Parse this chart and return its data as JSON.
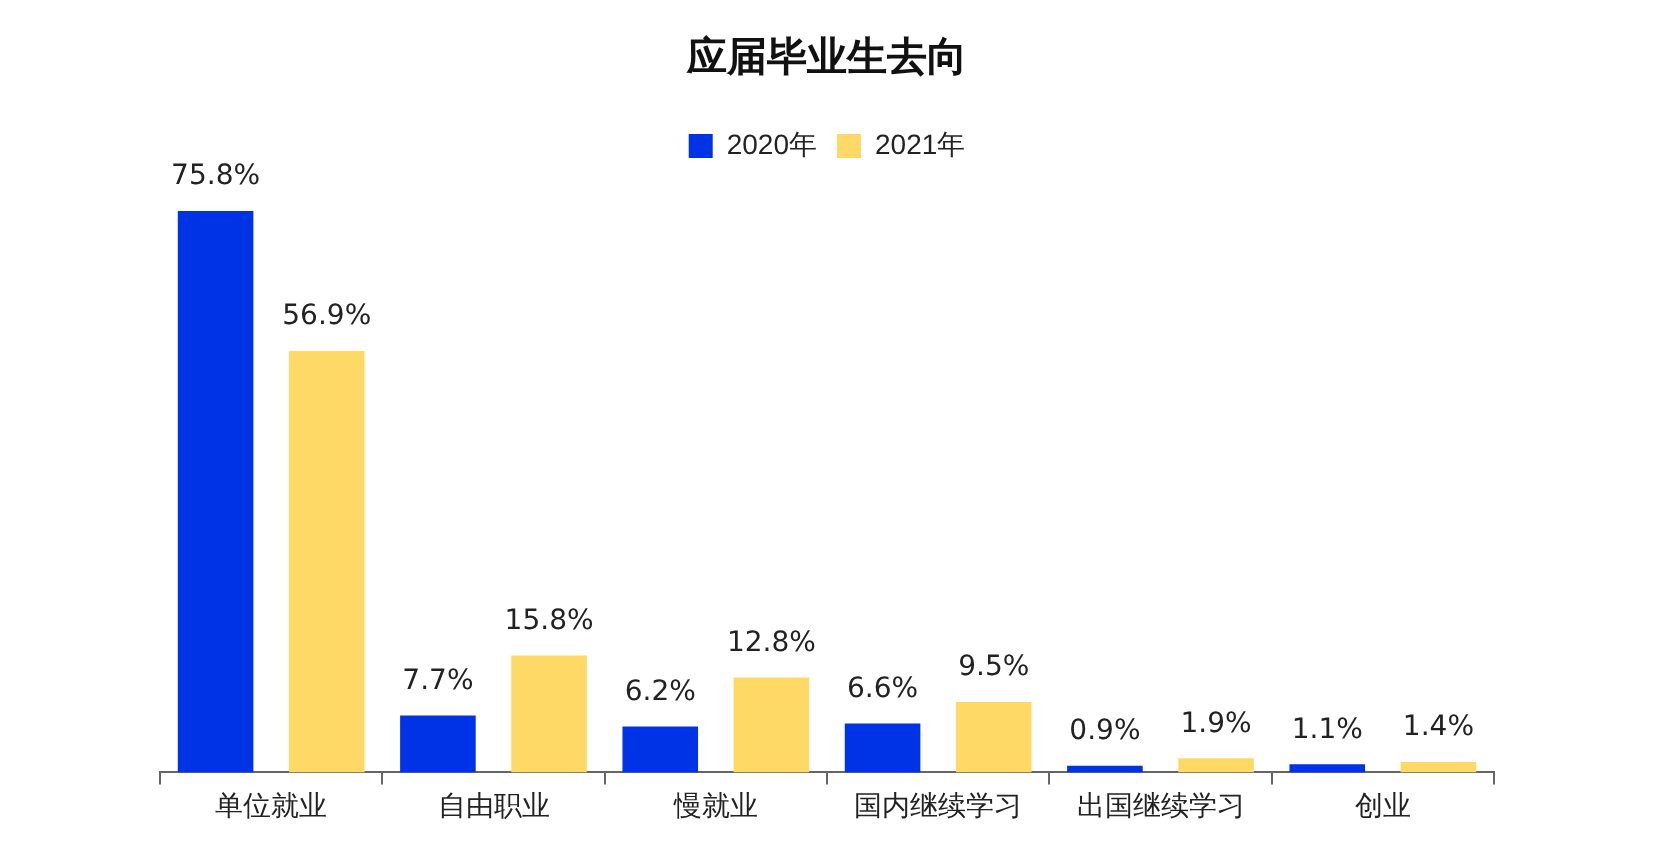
{
  "chart_data": {
    "type": "bar",
    "title": "应届毕业生去向",
    "categories": [
      "单位就业",
      "自由职业",
      "慢就业",
      "国内继续学习",
      "出国继续学习",
      "创业"
    ],
    "series": [
      {
        "name": "2020年",
        "color": "#0033e6",
        "values": [
          75.8,
          7.7,
          6.2,
          6.6,
          0.9,
          1.1
        ],
        "value_labels": [
          "75.8%",
          "7.7%",
          "6.2%",
          "6.6%",
          "0.9%",
          "1.1%"
        ]
      },
      {
        "name": "2021年",
        "color": "#ffd966",
        "values": [
          56.9,
          15.8,
          12.8,
          9.5,
          1.9,
          1.4
        ],
        "value_labels": [
          "56.9%",
          "15.8%",
          "12.8%",
          "9.5%",
          "1.9%",
          "1.4%"
        ]
      }
    ],
    "legend": "top",
    "grid": false,
    "tick_labels": "x"
  }
}
